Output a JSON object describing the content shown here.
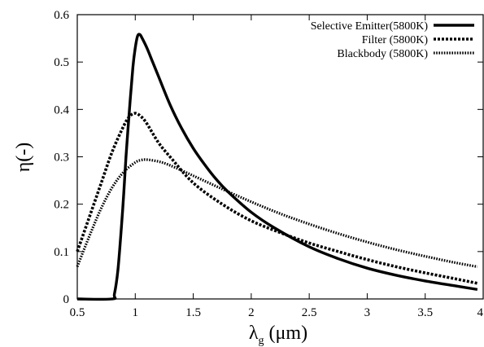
{
  "chart_data": {
    "type": "line",
    "title": "",
    "xlabel": "λg (μm)",
    "xlabel_main": "λ",
    "xlabel_sub": "g",
    "xlabel_unit": " (μm)",
    "ylabel": "η(-)",
    "xlim": [
      0.5,
      4
    ],
    "ylim": [
      0,
      0.6
    ],
    "x_ticks": [
      "0.5",
      "1",
      "1.5",
      "2",
      "2.5",
      "3",
      "3.5",
      "4"
    ],
    "y_ticks": [
      "0",
      "0.1",
      "0.2",
      "0.3",
      "0.4",
      "0.5",
      "0.6"
    ],
    "grid": false,
    "legend_position": "top-right",
    "series": [
      {
        "name": "Selective Emitter(5800K)",
        "style": "solid",
        "x": [
          0.5,
          0.8,
          0.82,
          0.85,
          0.88,
          0.9,
          0.92,
          0.95,
          0.98,
          1.0,
          1.02,
          1.04,
          1.06,
          1.1,
          1.15,
          1.2,
          1.3,
          1.4,
          1.5,
          1.6,
          1.7,
          1.8,
          2.0,
          2.2,
          2.5,
          2.75,
          3.0,
          3.25,
          3.5,
          3.75,
          3.95
        ],
        "values": [
          0.0,
          0.0,
          0.01,
          0.06,
          0.15,
          0.22,
          0.3,
          0.4,
          0.49,
          0.53,
          0.555,
          0.558,
          0.55,
          0.53,
          0.5,
          0.47,
          0.41,
          0.36,
          0.318,
          0.283,
          0.252,
          0.226,
          0.183,
          0.15,
          0.11,
          0.085,
          0.065,
          0.05,
          0.038,
          0.028,
          0.02
        ]
      },
      {
        "name": "Filter (5800K)",
        "style": "dashed",
        "x": [
          0.5,
          0.6,
          0.7,
          0.8,
          0.9,
          0.95,
          1.0,
          1.05,
          1.1,
          1.2,
          1.3,
          1.5,
          1.75,
          2.0,
          2.25,
          2.5,
          2.75,
          3.0,
          3.25,
          3.5,
          3.75,
          3.95
        ],
        "values": [
          0.1,
          0.17,
          0.24,
          0.31,
          0.365,
          0.385,
          0.392,
          0.385,
          0.37,
          0.33,
          0.3,
          0.245,
          0.2,
          0.165,
          0.14,
          0.118,
          0.1,
          0.083,
          0.068,
          0.055,
          0.043,
          0.033
        ]
      },
      {
        "name": "Blackbody (5800K)",
        "style": "dotted",
        "x": [
          0.5,
          0.6,
          0.7,
          0.8,
          0.9,
          1.0,
          1.05,
          1.1,
          1.2,
          1.3,
          1.5,
          1.75,
          2.0,
          2.25,
          2.5,
          2.75,
          3.0,
          3.25,
          3.5,
          3.75,
          3.95
        ],
        "values": [
          0.068,
          0.13,
          0.188,
          0.235,
          0.268,
          0.288,
          0.293,
          0.294,
          0.29,
          0.282,
          0.26,
          0.232,
          0.205,
          0.18,
          0.158,
          0.138,
          0.12,
          0.104,
          0.09,
          0.077,
          0.068
        ]
      }
    ]
  }
}
